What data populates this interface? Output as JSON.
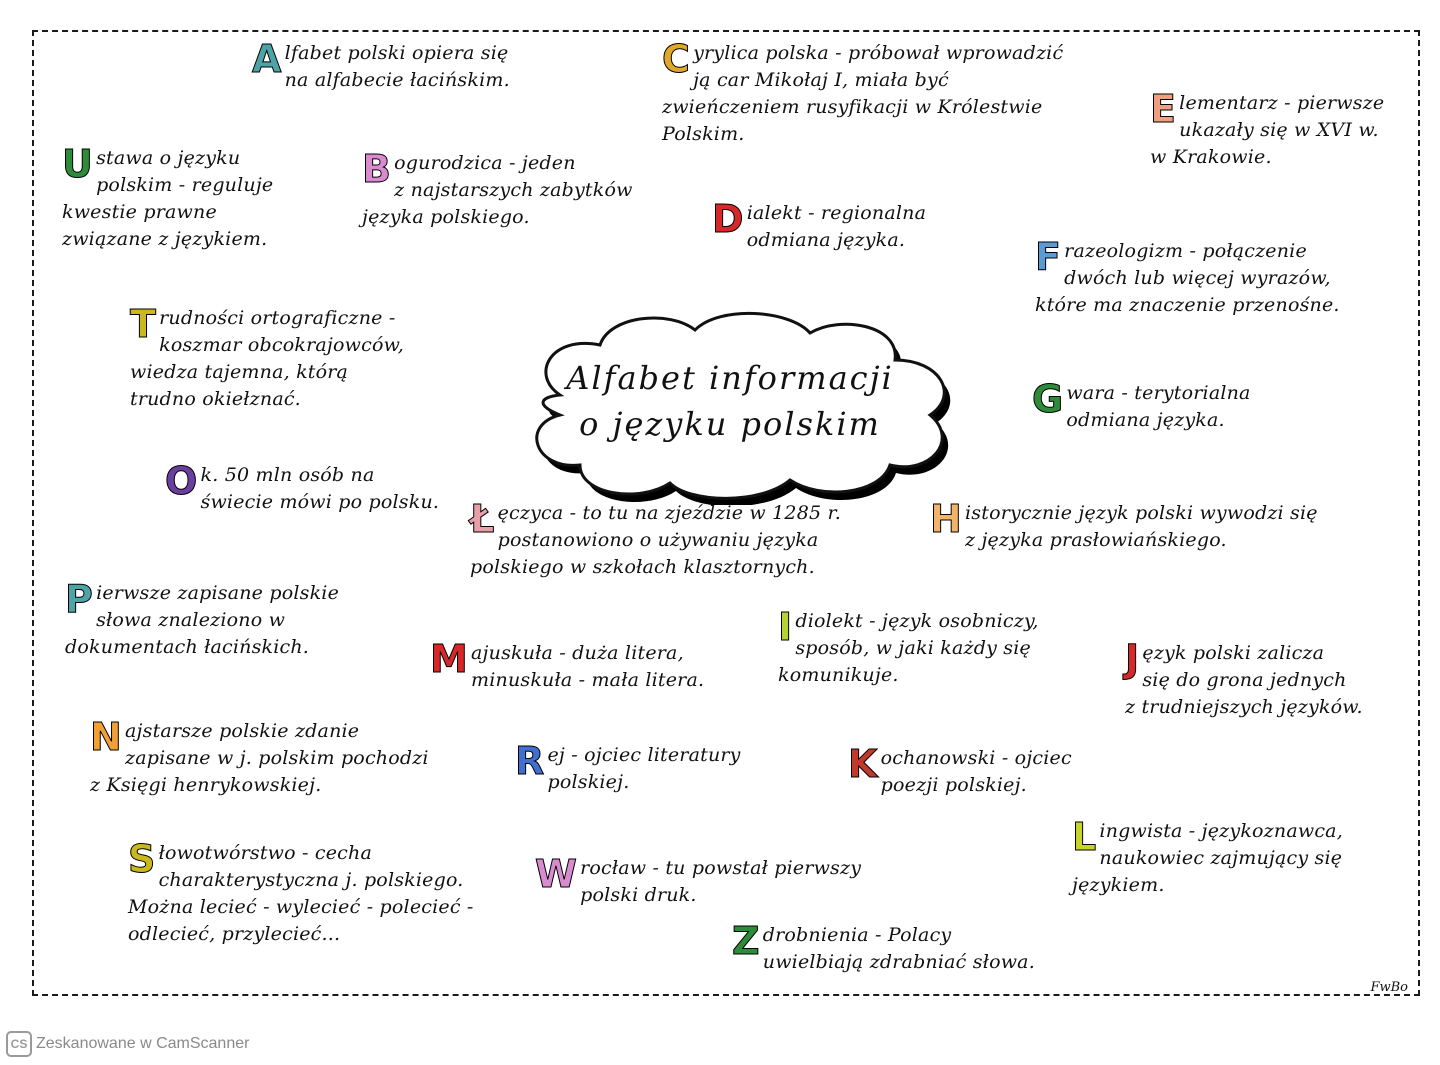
{
  "title_line1": "Alfabet informacji",
  "title_line2": "o języku polskim",
  "signature": "FwBo",
  "footer": {
    "scanner_logo": "CS",
    "scanner_text": "Zeskanowane w CamScanner"
  },
  "entries": {
    "a": {
      "letter": "A",
      "color": "#4da3a6",
      "lines": [
        "lfabet polski opiera się",
        "na alfabecie łacińskim."
      ]
    },
    "b": {
      "letter": "B",
      "color": "#d98bd0",
      "lines": [
        "ogurodzica - jeden",
        "z najstarszych zabytków",
        "języka polskiego."
      ]
    },
    "c": {
      "letter": "C",
      "color": "#e0a82a",
      "lines": [
        "yrylica polska - próbował wprowadzić",
        "ją car Mikołaj I, miała być",
        "zwieńczeniem rusyfikacji w Królestwie",
        "Polskim."
      ]
    },
    "d": {
      "letter": "D",
      "color": "#d62828",
      "lines": [
        "ialekt - regionalna",
        "odmiana języka."
      ]
    },
    "e": {
      "letter": "E",
      "color": "#f0a080",
      "lines": [
        "lementarz - pierwsze",
        "ukazały się w XVI w.",
        "w Krakowie."
      ]
    },
    "f": {
      "letter": "F",
      "color": "#5b9bd5",
      "lines": [
        "razeologizm - połączenie",
        "dwóch lub więcej wyrazów,",
        "które ma znaczenie przenośne."
      ]
    },
    "g": {
      "letter": "G",
      "color": "#2e8b3a",
      "lines": [
        "wara - terytorialna",
        "odmiana języka."
      ]
    },
    "h": {
      "letter": "H",
      "color": "#f2b36b",
      "lines": [
        "istorycznie język polski wywodzi się",
        "z języka prasłowiańskiego."
      ]
    },
    "i": {
      "letter": "I",
      "color": "#b5d334",
      "lines": [
        "diolekt - język osobniczy,",
        "sposób, w jaki każdy się",
        "komunikuje."
      ]
    },
    "j": {
      "letter": "J",
      "color": "#d62828",
      "lines": [
        "ęzyk polski zalicza",
        "się do grona jednych",
        "z trudniejszych języków."
      ]
    },
    "k": {
      "letter": "K",
      "color": "#c0392b",
      "lines": [
        "ochanowski - ojciec",
        "poezji polskiej."
      ]
    },
    "l": {
      "letter": "L",
      "color": "#c8d32a",
      "lines": [
        "ingwista - językoznawca,",
        "naukowiec zajmujący się",
        "językiem."
      ]
    },
    "l2": {
      "letter": "Ł",
      "color": "#e8a0a8",
      "lines": [
        "ęczyca - to tu na zjeździe w 1285 r.",
        "postanowiono o używaniu języka",
        "polskiego w szkołach klasztornych."
      ]
    },
    "m": {
      "letter": "M",
      "color": "#d62828",
      "lines": [
        "ajuskuła - duża litera,",
        "minuskuła - mała litera."
      ]
    },
    "n": {
      "letter": "N",
      "color": "#f29f35",
      "lines": [
        "ajstarsze polskie zdanie",
        "zapisane w j. polskim pochodzi",
        "z Księgi henrykowskiej."
      ]
    },
    "o": {
      "letter": "O",
      "color": "#6a3fa0",
      "lines": [
        "k. 50 mln osób na",
        "świecie mówi po polsku."
      ]
    },
    "p": {
      "letter": "P",
      "color": "#4da3a6",
      "lines": [
        "ierwsze zapisane polskie",
        "słowa znaleziono w",
        "dokumentach łacińskich."
      ]
    },
    "r": {
      "letter": "R",
      "color": "#3f6fd0",
      "lines": [
        "ej - ojciec literatury",
        "polskiej."
      ]
    },
    "s": {
      "letter": "S",
      "color": "#c9b91a",
      "lines": [
        "łowotwórstwo - cecha",
        "charakterystyczna j. polskiego.",
        "Można lecieć - wylecieć - polecieć -",
        "odlecieć, przylecieć..."
      ]
    },
    "w": {
      "letter": "W",
      "color": "#d98bd0",
      "lines": [
        "rocław - tu powstał pierwszy",
        "polski druk."
      ]
    },
    "z": {
      "letter": "Z",
      "color": "#2e8b3a",
      "lines": [
        "drobnienia - Polacy",
        "uwielbiają zdrabniać słowa."
      ]
    }
  }
}
